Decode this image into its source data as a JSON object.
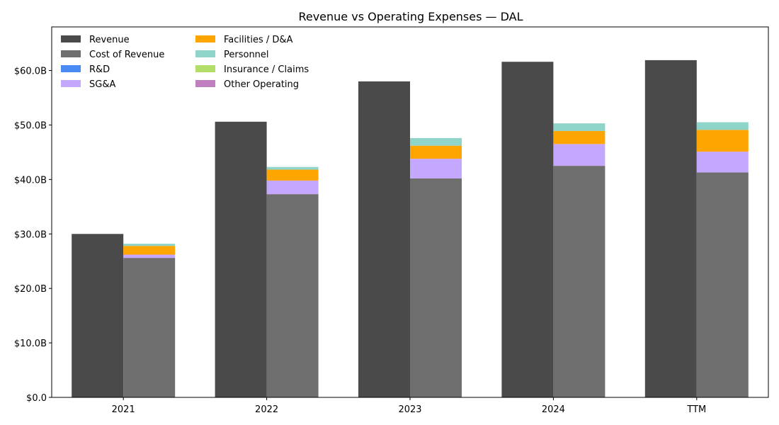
{
  "chart_data": {
    "type": "bar",
    "title": "Revenue vs Operating Expenses — DAL",
    "categories": [
      "2021",
      "2022",
      "2023",
      "2024",
      "TTM"
    ],
    "ylim": [
      0,
      68
    ],
    "yticks": [
      0,
      10,
      20,
      30,
      40,
      50,
      60
    ],
    "ytick_labels": [
      "$0.0",
      "$10.0B",
      "$20.0B",
      "$30.0B",
      "$40.0B",
      "$50.0B",
      "$60.0B"
    ],
    "grid": false,
    "legend": {
      "placement": "top-left",
      "columns": 2
    },
    "series": [
      {
        "name": "Revenue",
        "group": "revenue",
        "color": "#4a4a4a",
        "values": [
          30.0,
          50.6,
          58.0,
          61.6,
          61.9
        ]
      },
      {
        "name": "Cost of Revenue",
        "group": "expenses",
        "color": "#6e6e6e",
        "values": [
          25.6,
          37.3,
          40.2,
          42.5,
          41.3
        ]
      },
      {
        "name": "R&D",
        "group": "expenses",
        "color": "#4a8af4",
        "values": [
          0,
          0,
          0,
          0,
          0
        ]
      },
      {
        "name": "SG&A",
        "group": "expenses",
        "color": "#c4a8ff",
        "values": [
          0.6,
          2.5,
          3.6,
          4.0,
          3.8
        ]
      },
      {
        "name": "Facilities / D&A",
        "group": "expenses",
        "color": "#ffa500",
        "values": [
          1.6,
          2.0,
          2.4,
          2.4,
          4.0
        ]
      },
      {
        "name": "Personnel",
        "group": "expenses",
        "color": "#8fd4c8",
        "values": [
          0.4,
          0.5,
          1.4,
          1.4,
          1.4
        ]
      },
      {
        "name": "Insurance / Claims",
        "group": "expenses",
        "color": "#b3de69",
        "values": [
          0,
          0,
          0,
          0,
          0
        ]
      },
      {
        "name": "Other Operating",
        "group": "expenses",
        "color": "#c080c0",
        "values": [
          0,
          0,
          0,
          0,
          0
        ]
      }
    ]
  }
}
